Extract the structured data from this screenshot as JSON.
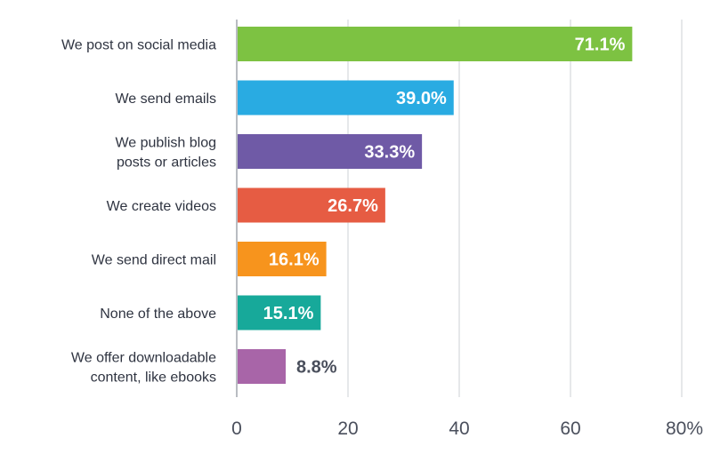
{
  "chart_data": {
    "type": "bar",
    "orientation": "horizontal",
    "title": "",
    "xlabel": "",
    "ylabel": "",
    "xlim": [
      0,
      80
    ],
    "grid": true,
    "legend": "none",
    "x_ticks": [
      "0",
      "20",
      "40",
      "60",
      "80%"
    ],
    "categories": [
      [
        "We post on social media"
      ],
      [
        "We send emails"
      ],
      [
        "We publish blog",
        "posts or articles"
      ],
      [
        "We create videos"
      ],
      [
        "We send direct mail"
      ],
      [
        "None of the above"
      ],
      [
        "We offer downloadable",
        "content, like ebooks"
      ]
    ],
    "values": [
      71.1,
      39.0,
      33.3,
      26.7,
      16.1,
      15.1,
      8.8
    ],
    "value_labels": [
      "71.1%",
      "39.0%",
      "33.3%",
      "26.7%",
      "16.1%",
      "15.1%",
      "8.8%"
    ],
    "colors": [
      "#7dc242",
      "#29abe2",
      "#6f5aa6",
      "#e65c43",
      "#f7941d",
      "#17a99a",
      "#a865a8"
    ]
  }
}
